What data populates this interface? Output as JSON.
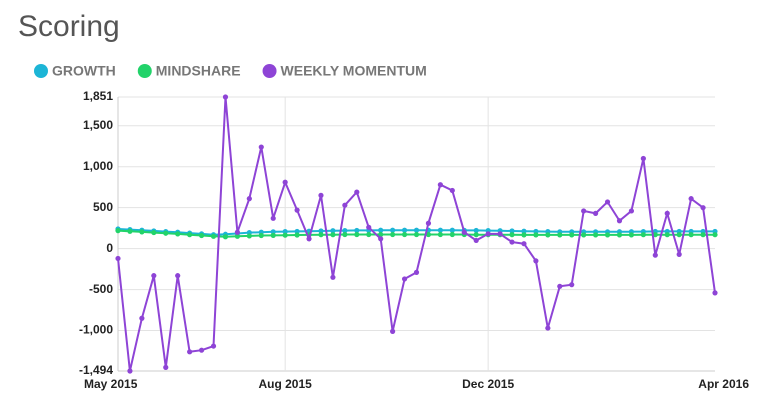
{
  "chart_data": {
    "type": "line",
    "title": "Scoring",
    "categories": [
      "May 2015",
      null,
      null,
      null,
      null,
      null,
      null,
      null,
      null,
      null,
      null,
      null,
      null,
      null,
      "Aug 2015",
      null,
      null,
      null,
      null,
      null,
      null,
      null,
      null,
      null,
      null,
      null,
      null,
      null,
      null,
      null,
      null,
      "Dec 2015",
      null,
      null,
      null,
      null,
      null,
      null,
      null,
      null,
      null,
      null,
      null,
      null,
      null,
      null,
      null,
      null,
      null,
      null,
      "Apr 2016"
    ],
    "series": [
      {
        "name": "GROWTH",
        "color": "#1cb5d6",
        "values": [
          240,
          232,
          224,
          216,
          208,
          200,
          190,
          180,
          170,
          175,
          185,
          195,
          200,
          205,
          208,
          210,
          212,
          215,
          218,
          220,
          222,
          222,
          224,
          225,
          225,
          225,
          225,
          225,
          224,
          223,
          222,
          220,
          218,
          215,
          212,
          210,
          208,
          205,
          205,
          205,
          205,
          205,
          206,
          207,
          208,
          210,
          210,
          210,
          210,
          210,
          210
        ]
      },
      {
        "name": "MINDSHARE",
        "color": "#22d36a",
        "values": [
          220,
          212,
          204,
          196,
          188,
          180,
          170,
          160,
          150,
          145,
          150,
          155,
          160,
          162,
          164,
          166,
          168,
          170,
          170,
          172,
          172,
          172,
          172,
          172,
          172,
          172,
          172,
          172,
          172,
          172,
          170,
          170,
          170,
          170,
          168,
          168,
          168,
          168,
          168,
          168,
          168,
          168,
          168,
          168,
          170,
          170,
          170,
          170,
          170,
          170,
          170
        ]
      },
      {
        "name": "WEEKLY MOMENTUM",
        "color": "#8e44d6",
        "values": [
          -120,
          -1494,
          -850,
          -330,
          -1450,
          -330,
          -1260,
          -1240,
          -1190,
          1851,
          200,
          610,
          1240,
          370,
          810,
          470,
          120,
          650,
          -350,
          530,
          690,
          260,
          120,
          -1010,
          -370,
          -290,
          310,
          780,
          710,
          200,
          100,
          180,
          180,
          80,
          60,
          -150,
          -970,
          -460,
          -440,
          460,
          430,
          570,
          340,
          460,
          1100,
          -80,
          430,
          -70,
          610,
          500,
          -540
        ]
      }
    ],
    "ylim": [
      -1494,
      1851
    ],
    "yticks": [
      {
        "value": -1494,
        "label": "-1,494"
      },
      {
        "value": -1000,
        "label": "-1,000"
      },
      -500,
      0,
      500,
      {
        "value": 1000,
        "label": "1,000"
      },
      {
        "value": 1500,
        "label": "1,500"
      },
      {
        "value": 1851,
        "label": "1,851"
      }
    ],
    "grid": true
  }
}
